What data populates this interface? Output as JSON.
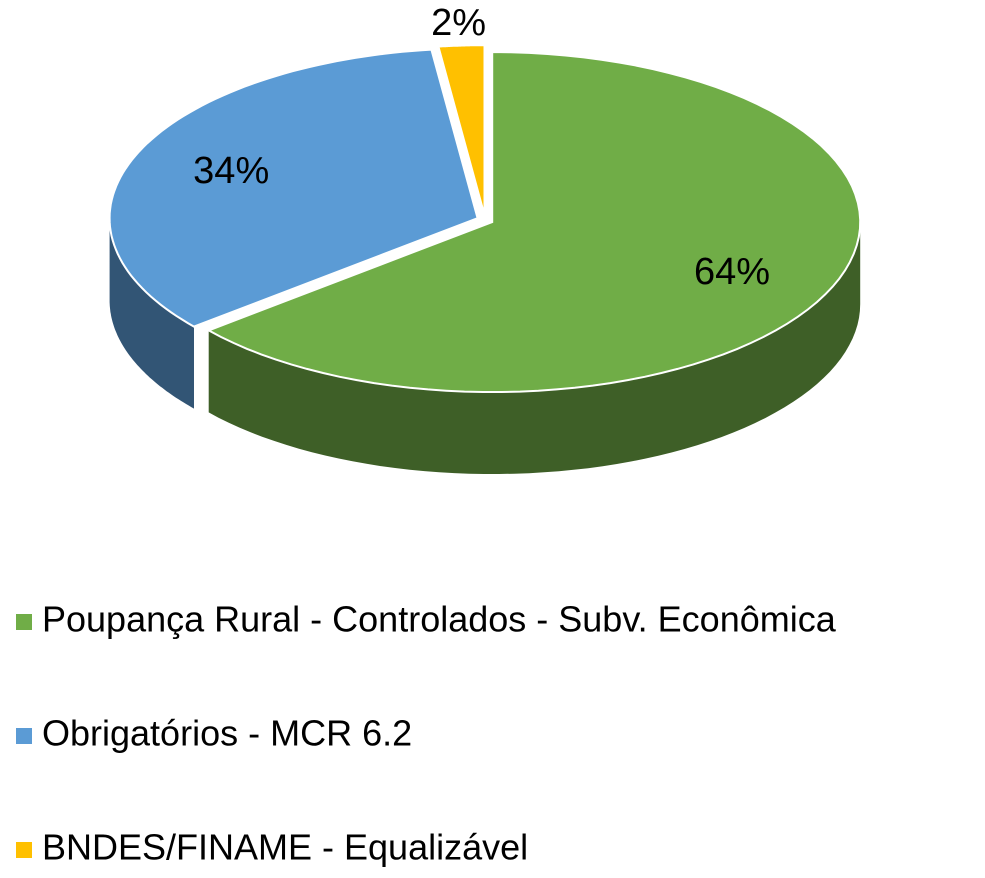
{
  "chart_data": {
    "type": "pie",
    "categories": [
      "Poupança Rural - Controlados - Subv. Econômica",
      "Obrigatórios - MCR 6.2",
      "BNDES/FINAME - Equalizável"
    ],
    "values": [
      64,
      34,
      2
    ],
    "value_labels": [
      "64%",
      "34%",
      "2%"
    ],
    "colors": [
      "#70ad47",
      "#5b9bd5",
      "#ffc000"
    ],
    "legend": "bottom"
  }
}
